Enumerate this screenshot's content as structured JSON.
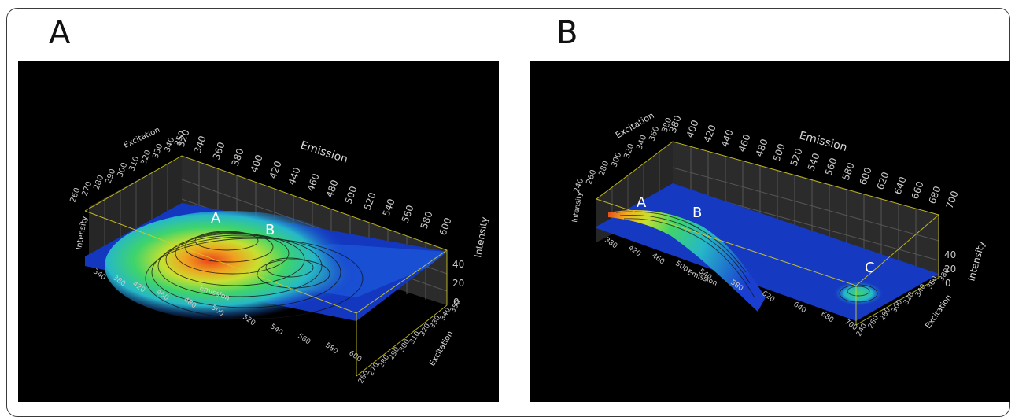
{
  "panels": [
    {
      "letter": "A",
      "emission_title": "Emission",
      "excitation_title": "Excitation",
      "intensity_title": "Intensity",
      "emission_ticks": [
        "320",
        "340",
        "360",
        "380",
        "400",
        "420",
        "440",
        "460",
        "480",
        "500",
        "520",
        "540",
        "560",
        "580",
        "600"
      ],
      "excitation_ticks": [
        "260",
        "270",
        "280",
        "290",
        "300",
        "310",
        "320",
        "330",
        "340",
        "350"
      ],
      "intensity_ticks": [
        "40",
        "20",
        "0"
      ],
      "peak_labels": [
        "A",
        "B"
      ]
    },
    {
      "letter": "B",
      "emission_title": "Emission",
      "excitation_title": "Excitation",
      "intensity_title": "Intensity",
      "emission_ticks": [
        "380",
        "400",
        "420",
        "440",
        "460",
        "480",
        "500",
        "520",
        "540",
        "560",
        "580",
        "600",
        "620",
        "640",
        "660",
        "680",
        "700"
      ],
      "excitation_ticks": [
        "240",
        "260",
        "280",
        "300",
        "320",
        "340",
        "360",
        "380"
      ],
      "intensity_ticks": [
        "40",
        "20",
        "0"
      ],
      "peak_labels": [
        "A",
        "B",
        "C"
      ]
    }
  ],
  "chart_data": [
    {
      "type": "surface",
      "title": "A",
      "xlabel": "Emission",
      "ylabel": "Excitation",
      "zlabel": "Intensity",
      "xlim": [
        320,
        600
      ],
      "ylim": [
        250,
        350
      ],
      "zlim": [
        0,
        40
      ],
      "peaks": [
        {
          "label": "A",
          "emission": 345,
          "excitation": 275,
          "intensity": 40
        },
        {
          "label": "B",
          "emission": 420,
          "excitation": 320,
          "intensity": 18
        }
      ],
      "colormap": [
        "#1a2fd0",
        "#1e7fe0",
        "#26c3c3",
        "#3fd46a",
        "#c8e030",
        "#f0a020",
        "#e03a1a"
      ]
    },
    {
      "type": "surface",
      "title": "B",
      "xlabel": "Emission",
      "ylabel": "Excitation",
      "zlabel": "Intensity",
      "xlim": [
        380,
        700
      ],
      "ylim": [
        240,
        380
      ],
      "zlim": [
        0,
        40
      ],
      "peaks": [
        {
          "label": "A",
          "emission": 420,
          "excitation": 240,
          "intensity": 28
        },
        {
          "label": "B",
          "emission": 450,
          "excitation": 280,
          "intensity": 16
        },
        {
          "label": "C",
          "emission": 680,
          "excitation": 360,
          "intensity": 8
        }
      ],
      "colormap": [
        "#1a2fd0",
        "#1e7fe0",
        "#26c3c3",
        "#3fd46a",
        "#c8e030",
        "#f0a020",
        "#e03a1a"
      ]
    }
  ]
}
